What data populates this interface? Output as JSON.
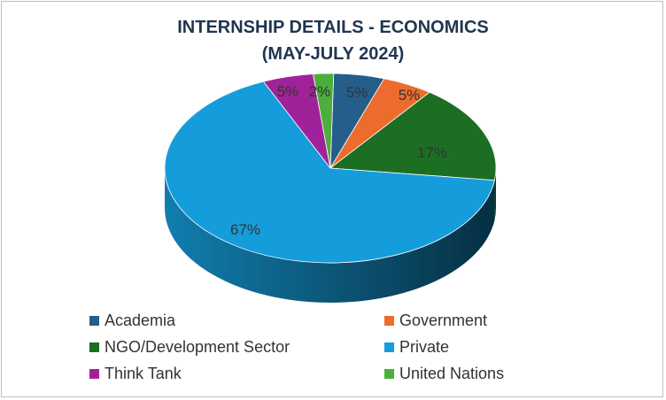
{
  "chart_data": {
    "type": "pie",
    "title": "INTERNSHIP DETAILS - ECONOMICS\n(MAY-JULY 2024)",
    "categories": [
      "Academia",
      "Government",
      "NGO/Development Sector",
      "Private",
      "Think Tank",
      "United Nations"
    ],
    "values": [
      5,
      5,
      17,
      67,
      5,
      2
    ],
    "data_labels": [
      "5%",
      "5%",
      "17%",
      "67%",
      "5%",
      "2%"
    ],
    "colors": [
      "#255e8a",
      "#ed6c2d",
      "#1c6e23",
      "#159ddb",
      "#a0229a",
      "#4cae3d"
    ],
    "style": "3d-pie",
    "legend_position": "bottom"
  }
}
